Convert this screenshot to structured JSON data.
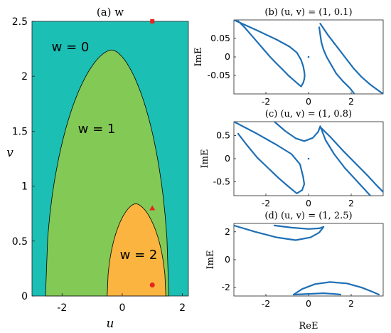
{
  "chart_data": [
    {
      "id": "a",
      "type": "heatmap",
      "title": "(a) w",
      "xlabel": "u",
      "ylabel": "v",
      "xlim": [
        -3,
        2.2
      ],
      "ylim": [
        0,
        2.5
      ],
      "xticks": [
        -2,
        0,
        2
      ],
      "xtick_labels": [
        "-2",
        "0",
        "2"
      ],
      "yticks": [
        0,
        0.5,
        1,
        1.5,
        2,
        2.5
      ],
      "ytick_labels": [
        "0",
        "0.5",
        "1",
        "1.5",
        "2",
        "2.5"
      ],
      "colors": {
        "w0": "#1cbfb4",
        "w1": "#83c956",
        "w2": "#fbb440",
        "boundary": "#000000",
        "marker": "#e8231f"
      },
      "regions": [
        {
          "label": "w = 0",
          "label_u": -2.0,
          "label_v": 2.3
        },
        {
          "label": "w = 1",
          "label_u": -1.0,
          "label_v": 1.52,
          "boundary": {
            "u_left": -2.55,
            "u_right": 1.55,
            "u_peak": -0.35,
            "v_peak": 2.24
          }
        },
        {
          "label": "w = 2",
          "label_u": 0.3,
          "label_v": 0.37,
          "boundary": {
            "u_left": -0.5,
            "u_right": 1.45,
            "u_peak": 0.45,
            "v_peak": 0.84
          }
        }
      ],
      "markers": [
        {
          "shape": "square",
          "u": 1,
          "v": 2.5
        },
        {
          "shape": "triangle",
          "u": 1,
          "v": 0.8
        },
        {
          "shape": "circle",
          "u": 1,
          "v": 0.1
        }
      ]
    },
    {
      "id": "b",
      "type": "scatter",
      "title": "(b) (u, v) = (1, 0.1)",
      "xlabel": "",
      "ylabel": "ImE",
      "xlim": [
        -3.5,
        3.5
      ],
      "ylim": [
        -0.1,
        0.1
      ],
      "xticks": [
        -2,
        0,
        2
      ],
      "xtick_labels": [
        "-2",
        "0",
        "2"
      ],
      "yticks": [
        -0.05,
        0,
        0.05
      ],
      "ytick_labels": [
        "-0.05",
        "0",
        "0.05"
      ],
      "series": [
        {
          "points": [
            [
              -3.5,
              0.1
            ],
            [
              -2.5,
              0.074
            ],
            [
              -1.5,
              0.047
            ],
            [
              -0.9,
              0.028
            ],
            [
              -0.55,
              0.012
            ],
            [
              -0.35,
              -0.008
            ],
            [
              -0.25,
              -0.025
            ],
            [
              -0.2,
              -0.04
            ],
            [
              -0.18,
              -0.05
            ],
            [
              -0.2,
              -0.06
            ],
            [
              -0.25,
              -0.07
            ],
            [
              -0.35,
              -0.08
            ],
            [
              -0.55,
              -0.07
            ],
            [
              -0.75,
              -0.06
            ],
            [
              -0.95,
              -0.05
            ],
            [
              -1.2,
              -0.035
            ],
            [
              -1.5,
              -0.018
            ],
            [
              -1.8,
              0.0
            ],
            [
              -2.1,
              0.02
            ],
            [
              -2.4,
              0.04
            ],
            [
              -2.7,
              0.06
            ],
            [
              -3.0,
              0.08
            ],
            [
              -3.3,
              0.097
            ]
          ]
        },
        {
          "points": [
            [
              0.5,
              0.08
            ],
            [
              0.55,
              0.06
            ],
            [
              0.6,
              0.04
            ],
            [
              0.7,
              0.02
            ],
            [
              0.85,
              0.0
            ],
            [
              1.05,
              -0.02
            ],
            [
              1.3,
              -0.045
            ],
            [
              1.6,
              -0.065
            ],
            [
              1.95,
              -0.085
            ],
            [
              2.15,
              -0.1
            ]
          ]
        },
        {
          "points": [
            [
              0.55,
              0.09
            ],
            [
              0.9,
              0.06
            ],
            [
              1.3,
              0.03
            ],
            [
              1.7,
              0.0
            ],
            [
              2.1,
              -0.03
            ],
            [
              2.5,
              -0.055
            ],
            [
              2.9,
              -0.075
            ],
            [
              3.3,
              -0.092
            ],
            [
              3.5,
              -0.1
            ]
          ]
        },
        {
          "points": [
            [
              0.0,
              0.0
            ]
          ]
        }
      ]
    },
    {
      "id": "c",
      "type": "scatter",
      "title": "(c) (u, v) = (1, 0.8)",
      "xlabel": "",
      "ylabel": "ImE",
      "xlim": [
        -3.5,
        3.5
      ],
      "ylim": [
        -0.8,
        0.8
      ],
      "xticks": [
        -2,
        0,
        2
      ],
      "xtick_labels": [
        "-2",
        "0",
        "2"
      ],
      "yticks": [
        -0.5,
        0,
        0.5
      ],
      "ytick_labels": [
        "-0.5",
        "0",
        "0.5"
      ],
      "series": [
        {
          "points": [
            [
              -3.5,
              0.8
            ],
            [
              -2.5,
              0.56
            ],
            [
              -1.5,
              0.3
            ],
            [
              -0.8,
              0.1
            ],
            [
              -0.4,
              -0.12
            ],
            [
              -0.25,
              -0.4
            ],
            [
              -0.2,
              -0.55
            ],
            [
              -0.3,
              -0.68
            ],
            [
              -0.55,
              -0.75
            ],
            [
              -0.95,
              -0.6
            ],
            [
              -1.4,
              -0.42
            ],
            [
              -1.9,
              -0.2
            ],
            [
              -2.4,
              0.02
            ],
            [
              -2.9,
              0.3
            ],
            [
              -3.3,
              0.54
            ]
          ]
        },
        {
          "points": [
            [
              -1.6,
              0.8
            ],
            [
              -1.1,
              0.6
            ],
            [
              -0.6,
              0.44
            ],
            [
              -0.2,
              0.38
            ],
            [
              0.2,
              0.45
            ],
            [
              0.45,
              0.58
            ],
            [
              0.55,
              0.7
            ]
          ]
        },
        {
          "points": [
            [
              0.55,
              0.7
            ],
            [
              0.8,
              0.4
            ],
            [
              1.2,
              0.1
            ],
            [
              1.7,
              -0.2
            ],
            [
              2.2,
              -0.45
            ],
            [
              2.6,
              -0.65
            ],
            [
              2.9,
              -0.8
            ]
          ]
        },
        {
          "points": [
            [
              0.6,
              0.66
            ],
            [
              1.0,
              0.48
            ],
            [
              1.6,
              0.18
            ],
            [
              2.2,
              -0.1
            ],
            [
              2.8,
              -0.38
            ],
            [
              3.2,
              -0.58
            ],
            [
              3.5,
              -0.72
            ]
          ]
        },
        {
          "points": [
            [
              0.0,
              0.0
            ]
          ]
        }
      ]
    },
    {
      "id": "d",
      "type": "scatter",
      "title": "(d) (u, v) = (1, 2.5)",
      "xlabel": "ReE",
      "ylabel": "ImE",
      "xlim": [
        -3.5,
        3.5
      ],
      "ylim": [
        -2.6,
        2.6
      ],
      "xticks": [
        -2,
        0,
        2
      ],
      "xtick_labels": [
        "-2",
        "0",
        "2"
      ],
      "yticks": [
        -2,
        0,
        2
      ],
      "ytick_labels": [
        "-2",
        "0",
        "2"
      ],
      "series": [
        {
          "points": [
            [
              -3.5,
              2.45
            ],
            [
              -2.5,
              2.0
            ],
            [
              -1.5,
              1.6
            ],
            [
              -0.6,
              1.4
            ],
            [
              0.1,
              1.6
            ],
            [
              0.5,
              1.95
            ],
            [
              0.7,
              2.35
            ]
          ]
        },
        {
          "points": [
            [
              -1.6,
              2.45
            ],
            [
              -0.8,
              2.3
            ],
            [
              0.0,
              2.2
            ],
            [
              0.5,
              2.25
            ],
            [
              0.7,
              2.35
            ]
          ]
        },
        {
          "points": [
            [
              -0.7,
              -2.5
            ],
            [
              -0.3,
              -2.1
            ],
            [
              0.3,
              -1.75
            ],
            [
              1.0,
              -1.6
            ],
            [
              1.8,
              -1.7
            ],
            [
              2.5,
              -2.0
            ],
            [
              3.0,
              -2.3
            ],
            [
              3.3,
              -2.5
            ]
          ]
        },
        {
          "points": [
            [
              -0.7,
              -2.5
            ],
            [
              0.0,
              -2.45
            ],
            [
              0.7,
              -2.4
            ],
            [
              1.2,
              -2.45
            ],
            [
              1.5,
              -2.5
            ]
          ]
        }
      ]
    }
  ]
}
